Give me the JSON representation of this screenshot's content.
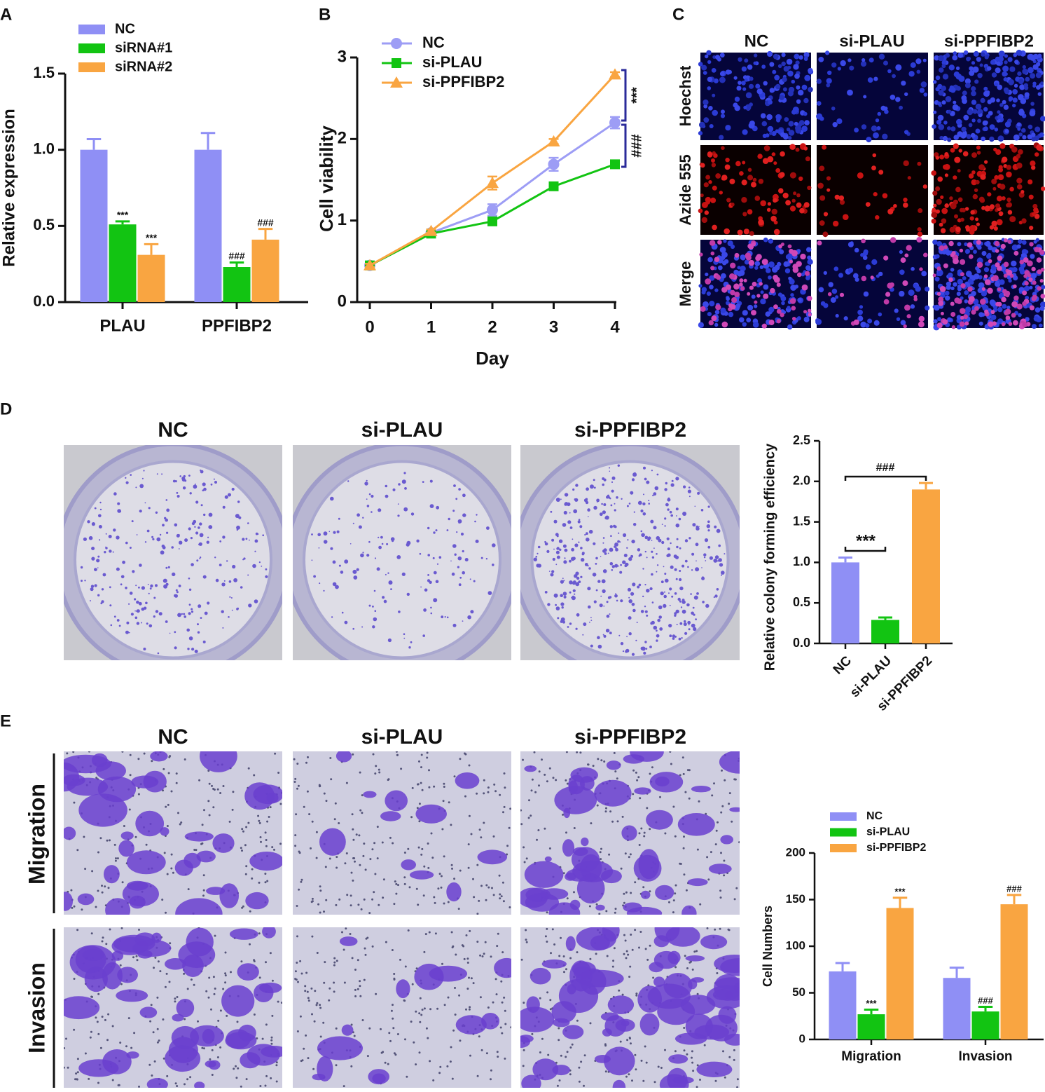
{
  "panel_letters": [
    "A",
    "B",
    "C",
    "D",
    "E"
  ],
  "image_panels": [
    {
      "columns": [
        "NC",
        "si-PLAU",
        "si-PPFIBP2"
      ],
      "rows": [
        "Hoechst",
        "Azide 555",
        "Merge"
      ]
    },
    {
      "columns": [
        "NC",
        "si-PLAU",
        "si-PPFIBP2"
      ]
    },
    {
      "columns": [
        "NC",
        "si-PLAU",
        "si-PPFIBP2"
      ],
      "rows": [
        "Migration",
        "Invasion"
      ]
    }
  ],
  "chart_data": [
    {
      "type": "bar",
      "ylabel": "Relative expression",
      "categories": [
        "PLAU",
        "PPFIBP2"
      ],
      "series": [
        {
          "name": "NC",
          "color": "#8f8ff5",
          "values": [
            1.0,
            1.0
          ],
          "errors": [
            0.07,
            0.11
          ]
        },
        {
          "name": "siRNA#1",
          "color": "#12c412",
          "values": [
            0.51,
            0.23
          ],
          "errors": [
            0.02,
            0.03
          ],
          "labels": [
            "***",
            "###"
          ]
        },
        {
          "name": "siRNA#2",
          "color": "#f9a541",
          "values": [
            0.31,
            0.41
          ],
          "errors": [
            0.07,
            0.07
          ],
          "labels": [
            "***",
            "###"
          ]
        }
      ],
      "ylim": [
        0,
        1.5
      ],
      "yticks": [
        {
          "value": 0,
          "label": "0.0"
        },
        0.5,
        {
          "value": 1,
          "label": "1.0"
        },
        1.5
      ]
    },
    {
      "type": "line",
      "xlabel": "Day",
      "ylabel": "Cell viability",
      "x": [
        0,
        1,
        2,
        3,
        4
      ],
      "series": [
        {
          "name": "NC",
          "color": "#9d9df5",
          "marker": "circle",
          "values": [
            0.45,
            0.85,
            1.13,
            1.69,
            2.2
          ],
          "errors": [
            0.02,
            0.02,
            0.07,
            0.08,
            0.07
          ]
        },
        {
          "name": "si-PLAU",
          "color": "#12c412",
          "marker": "square",
          "values": [
            0.45,
            0.84,
            0.99,
            1.42,
            1.69
          ],
          "errors": [
            0.02,
            0.02,
            0.03,
            0.03,
            0.03
          ]
        },
        {
          "name": "si-PPFIBP2",
          "color": "#f9a541",
          "marker": "triangle",
          "values": [
            0.45,
            0.87,
            1.46,
            1.97,
            2.79
          ],
          "errors": [
            0.02,
            0.02,
            0.08,
            0.03,
            0.03
          ]
        }
      ],
      "annotations": [
        "***",
        "###"
      ],
      "xlim": [
        0,
        4
      ],
      "xticks": [
        0,
        1,
        2,
        3,
        4
      ],
      "ylim": [
        0,
        3
      ],
      "yticks": [
        0,
        1,
        2,
        3
      ]
    },
    {
      "type": "bar",
      "ylabel": "Relative colony forming efficiency",
      "categories": [
        "NC",
        "si-PLAU",
        "si-PPFIBP2"
      ],
      "values": [
        1.0,
        0.29,
        1.9
      ],
      "errors": [
        0.06,
        0.03,
        0.08
      ],
      "colors": [
        "#8f8ff5",
        "#12c412",
        "#f9a541"
      ],
      "annotations": [
        "***",
        "###"
      ],
      "ylim": [
        0,
        2.5
      ],
      "yticks": [
        {
          "value": 0,
          "label": "0.0"
        },
        0.5,
        {
          "value": 1,
          "label": "1.0"
        },
        1.5,
        {
          "value": 2,
          "label": "2.0"
        },
        2.5
      ]
    },
    {
      "type": "bar",
      "ylabel": "Cell Numbers",
      "categories": [
        "Migration",
        "Invasion"
      ],
      "series": [
        {
          "name": "NC",
          "color": "#8f8ff5",
          "values": [
            73,
            66
          ],
          "errors": [
            9,
            11
          ]
        },
        {
          "name": "si-PLAU",
          "color": "#12c412",
          "values": [
            27,
            30
          ],
          "errors": [
            5,
            5
          ],
          "labels": [
            "***",
            "###"
          ]
        },
        {
          "name": "si-PPFIBP2",
          "color": "#f9a541",
          "values": [
            141,
            145
          ],
          "errors": [
            11,
            10
          ],
          "labels": [
            "***",
            "###"
          ]
        }
      ],
      "ylim": [
        0,
        200
      ],
      "yticks": [
        0,
        50,
        100,
        150,
        200
      ]
    }
  ]
}
